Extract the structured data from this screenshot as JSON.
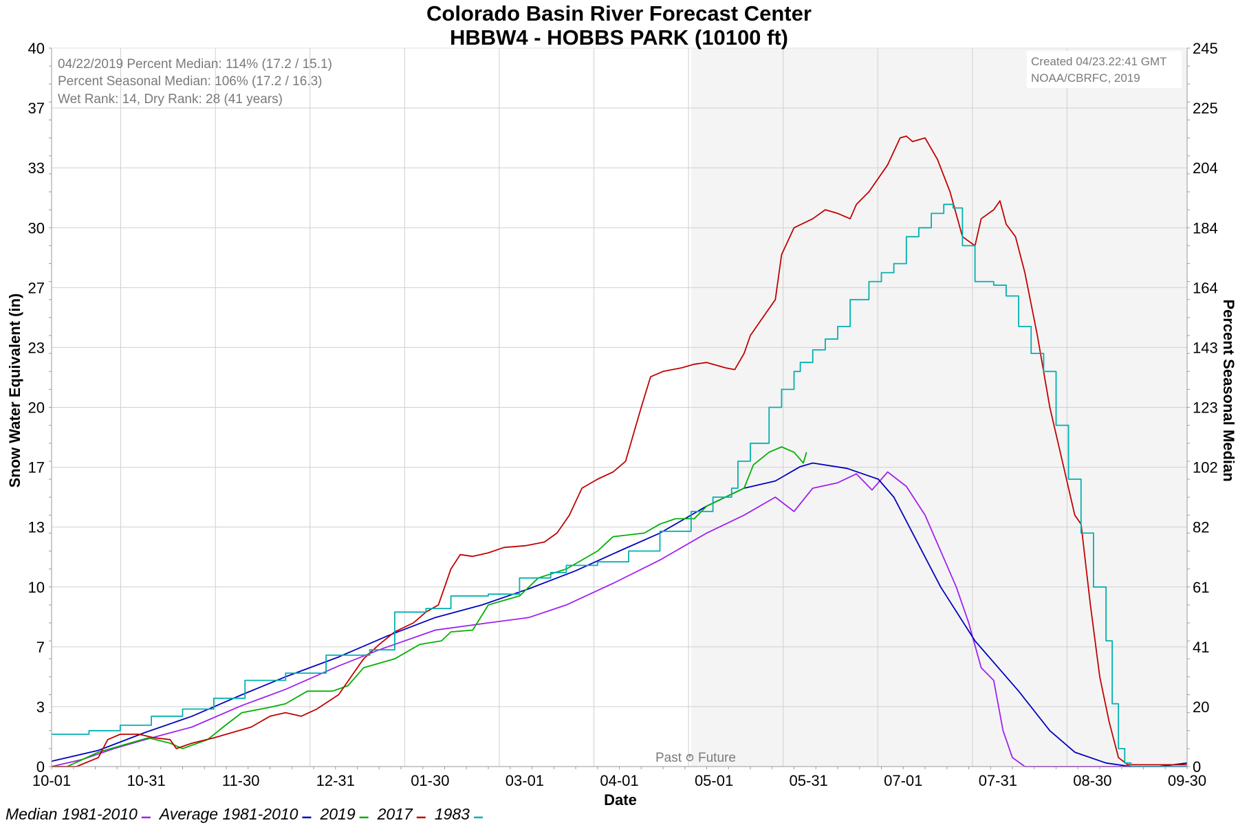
{
  "chart_data": {
    "type": "line",
    "title": "Colorado Basin River Forecast Center",
    "subtitle": "HBBW4 - HOBBS PARK (10100 ft)",
    "xlabel": "Date",
    "ylabel": "Snow Water Equivalent (in)",
    "ylabel_right": "Percent Seasonal Median",
    "x_ticks": [
      "10-01",
      "10-31",
      "11-30",
      "12-31",
      "01-30",
      "03-01",
      "04-01",
      "05-01",
      "05-31",
      "07-01",
      "07-31",
      "08-30",
      "09-30"
    ],
    "y_ticks": [
      "0",
      "3",
      "7",
      "10",
      "13",
      "17",
      "20",
      "23",
      "27",
      "30",
      "33",
      "37",
      "40"
    ],
    "y_right_ticks": [
      "0",
      "20",
      "41",
      "61",
      "82",
      "102",
      "123",
      "143",
      "164",
      "184",
      "204",
      "225",
      "245"
    ],
    "ylim": [
      0,
      40
    ],
    "ylim_right": [
      0,
      245
    ],
    "x_range_days": [
      0,
      364
    ],
    "grid": true,
    "shaded_region": {
      "start_day": 205,
      "end_day": 364,
      "color": "#f4f4f4"
    },
    "past_future_label": {
      "past": "Past",
      "future": "Future"
    },
    "info_lines": [
      "04/22/2019 Percent Median: 114% (17.2 / 15.1)",
      "Percent Seasonal Median: 106% (17.2 / 16.3)",
      "Wet Rank: 14, Dry Rank: 28  (41 years)"
    ],
    "credit_lines": [
      "Created 04/23.22:41 GMT",
      "NOAA/CBRFC, 2019"
    ],
    "legend_position": "bottom",
    "series": [
      {
        "name": "Median 1981-2010",
        "color": "#a020f0",
        "step": false,
        "points": [
          [
            0,
            0
          ],
          [
            10,
            0.4
          ],
          [
            20,
            1
          ],
          [
            30,
            1.5
          ],
          [
            45,
            2.2
          ],
          [
            61,
            3.4
          ],
          [
            75,
            4.3
          ],
          [
            92,
            5.6
          ],
          [
            105,
            6.5
          ],
          [
            123,
            7.6
          ],
          [
            140,
            8
          ],
          [
            153,
            8.3
          ],
          [
            165,
            9
          ],
          [
            180,
            10.2
          ],
          [
            195,
            11.5
          ],
          [
            210,
            13
          ],
          [
            222,
            14
          ],
          [
            232,
            15
          ],
          [
            238,
            14.2
          ],
          [
            244,
            15.5
          ],
          [
            252,
            15.8
          ],
          [
            258,
            16.3
          ],
          [
            263,
            15.4
          ],
          [
            268,
            16.4
          ],
          [
            274,
            15.6
          ],
          [
            280,
            14
          ],
          [
            285,
            12
          ],
          [
            290,
            10
          ],
          [
            294,
            8
          ],
          [
            298,
            5.5
          ],
          [
            302,
            4.8
          ],
          [
            305,
            2
          ],
          [
            308,
            0.5
          ],
          [
            312,
            0
          ],
          [
            364,
            0
          ]
        ]
      },
      {
        "name": "Average 1981-2010",
        "color": "#0000c0",
        "step": false,
        "points": [
          [
            0,
            0.3
          ],
          [
            15,
            0.9
          ],
          [
            30,
            1.9
          ],
          [
            45,
            2.8
          ],
          [
            61,
            4
          ],
          [
            75,
            5
          ],
          [
            92,
            6.1
          ],
          [
            108,
            7.3
          ],
          [
            123,
            8.3
          ],
          [
            138,
            9
          ],
          [
            153,
            9.9
          ],
          [
            168,
            10.9
          ],
          [
            182,
            12
          ],
          [
            195,
            13
          ],
          [
            210,
            14.5
          ],
          [
            222,
            15.5
          ],
          [
            232,
            15.9
          ],
          [
            240,
            16.7
          ],
          [
            244,
            16.9
          ],
          [
            255,
            16.6
          ],
          [
            265,
            16
          ],
          [
            270,
            15
          ],
          [
            276,
            13
          ],
          [
            285,
            10
          ],
          [
            296,
            7
          ],
          [
            310,
            4.2
          ],
          [
            320,
            2
          ],
          [
            328,
            0.8
          ],
          [
            338,
            0.2
          ],
          [
            346,
            0
          ],
          [
            355,
            0
          ],
          [
            364,
            0.2
          ]
        ]
      },
      {
        "name": "2019",
        "color": "#00b000",
        "step": false,
        "points": [
          [
            0,
            0
          ],
          [
            5,
            0
          ],
          [
            15,
            0.8
          ],
          [
            25,
            1.3
          ],
          [
            31,
            1.6
          ],
          [
            38,
            1.3
          ],
          [
            42,
            1
          ],
          [
            50,
            1.5
          ],
          [
            55,
            2.2
          ],
          [
            61,
            3
          ],
          [
            70,
            3.3
          ],
          [
            75,
            3.5
          ],
          [
            82,
            4.2
          ],
          [
            90,
            4.2
          ],
          [
            95,
            4.5
          ],
          [
            100,
            5.5
          ],
          [
            110,
            6
          ],
          [
            118,
            6.8
          ],
          [
            125,
            7
          ],
          [
            128,
            7.5
          ],
          [
            135,
            7.6
          ],
          [
            140,
            9
          ],
          [
            150,
            9.5
          ],
          [
            156,
            10.5
          ],
          [
            165,
            11
          ],
          [
            175,
            12
          ],
          [
            180,
            12.8
          ],
          [
            190,
            13
          ],
          [
            195,
            13.5
          ],
          [
            200,
            13.8
          ],
          [
            206,
            13.8
          ],
          [
            210,
            14.5
          ],
          [
            216,
            15
          ],
          [
            222,
            15.5
          ],
          [
            225,
            16.8
          ],
          [
            230,
            17.5
          ],
          [
            234,
            17.8
          ],
          [
            238,
            17.5
          ],
          [
            241,
            16.9
          ],
          [
            242,
            17.5
          ]
        ]
      },
      {
        "name": "2017",
        "color": "#c00000",
        "step": false,
        "points": [
          [
            0,
            0
          ],
          [
            8,
            0
          ],
          [
            15,
            0.5
          ],
          [
            18,
            1.5
          ],
          [
            22,
            1.8
          ],
          [
            28,
            1.8
          ],
          [
            33,
            1.6
          ],
          [
            38,
            1.5
          ],
          [
            40,
            1
          ],
          [
            45,
            1.3
          ],
          [
            52,
            1.6
          ],
          [
            58,
            1.9
          ],
          [
            64,
            2.2
          ],
          [
            70,
            2.8
          ],
          [
            75,
            3
          ],
          [
            80,
            2.8
          ],
          [
            85,
            3.2
          ],
          [
            92,
            4
          ],
          [
            96,
            5
          ],
          [
            100,
            6
          ],
          [
            105,
            6.8
          ],
          [
            110,
            7.5
          ],
          [
            116,
            8
          ],
          [
            120,
            8.6
          ],
          [
            124,
            9
          ],
          [
            126,
            10
          ],
          [
            128,
            11
          ],
          [
            131,
            11.8
          ],
          [
            135,
            11.7
          ],
          [
            140,
            11.9
          ],
          [
            145,
            12.2
          ],
          [
            152,
            12.3
          ],
          [
            158,
            12.5
          ],
          [
            162,
            13
          ],
          [
            166,
            14
          ],
          [
            170,
            15.5
          ],
          [
            175,
            16
          ],
          [
            180,
            16.4
          ],
          [
            184,
            17
          ],
          [
            189,
            20
          ],
          [
            192,
            21.7
          ],
          [
            196,
            22
          ],
          [
            202,
            22.2
          ],
          [
            206,
            22.4
          ],
          [
            210,
            22.5
          ],
          [
            216,
            22.2
          ],
          [
            219,
            22.1
          ],
          [
            222,
            23
          ],
          [
            224,
            24
          ],
          [
            228,
            25
          ],
          [
            232,
            26
          ],
          [
            234,
            28.5
          ],
          [
            238,
            30
          ],
          [
            244,
            30.5
          ],
          [
            248,
            31
          ],
          [
            252,
            30.8
          ],
          [
            256,
            30.5
          ],
          [
            258,
            31.3
          ],
          [
            262,
            32
          ],
          [
            268,
            33.5
          ],
          [
            272,
            35
          ],
          [
            274,
            35.1
          ],
          [
            276,
            34.8
          ],
          [
            280,
            35
          ],
          [
            284,
            33.8
          ],
          [
            288,
            32
          ],
          [
            292,
            29.5
          ],
          [
            296,
            29
          ],
          [
            298,
            30.5
          ],
          [
            302,
            31
          ],
          [
            304,
            31.5
          ],
          [
            306,
            30.2
          ],
          [
            309,
            29.5
          ],
          [
            312,
            27.5
          ],
          [
            316,
            24
          ],
          [
            320,
            20
          ],
          [
            324,
            17
          ],
          [
            328,
            14
          ],
          [
            330,
            13.5
          ],
          [
            333,
            9
          ],
          [
            336,
            5
          ],
          [
            339,
            2.5
          ],
          [
            342,
            0.5
          ],
          [
            345,
            0.1
          ],
          [
            364,
            0.1
          ]
        ]
      },
      {
        "name": "1983",
        "color": "#00b0b0",
        "step": true,
        "points": [
          [
            0,
            1.8
          ],
          [
            12,
            2
          ],
          [
            22,
            2.3
          ],
          [
            32,
            2.8
          ],
          [
            42,
            3.2
          ],
          [
            52,
            3.8
          ],
          [
            62,
            4.8
          ],
          [
            75,
            5.2
          ],
          [
            88,
            6.2
          ],
          [
            102,
            6.5
          ],
          [
            110,
            8.6
          ],
          [
            120,
            8.8
          ],
          [
            128,
            9.5
          ],
          [
            140,
            9.6
          ],
          [
            150,
            10.5
          ],
          [
            160,
            10.8
          ],
          [
            165,
            11.2
          ],
          [
            175,
            11.4
          ],
          [
            185,
            12
          ],
          [
            195,
            13.1
          ],
          [
            205,
            14.2
          ],
          [
            212,
            15
          ],
          [
            218,
            15.5
          ],
          [
            220,
            17
          ],
          [
            224,
            18
          ],
          [
            230,
            20
          ],
          [
            234,
            21
          ],
          [
            238,
            22
          ],
          [
            240,
            22.5
          ],
          [
            244,
            23.2
          ],
          [
            248,
            23.8
          ],
          [
            252,
            24.5
          ],
          [
            256,
            26
          ],
          [
            262,
            27
          ],
          [
            266,
            27.5
          ],
          [
            270,
            28
          ],
          [
            274,
            29.5
          ],
          [
            278,
            30
          ],
          [
            282,
            30.8
          ],
          [
            286,
            31.3
          ],
          [
            289,
            31.1
          ],
          [
            292,
            29
          ],
          [
            296,
            27
          ],
          [
            302,
            26.8
          ],
          [
            306,
            26.2
          ],
          [
            310,
            24.5
          ],
          [
            314,
            23
          ],
          [
            318,
            22
          ],
          [
            322,
            19
          ],
          [
            326,
            16
          ],
          [
            330,
            13
          ],
          [
            334,
            10
          ],
          [
            338,
            7
          ],
          [
            340,
            3.5
          ],
          [
            342,
            1
          ],
          [
            344,
            0.2
          ],
          [
            346,
            0
          ],
          [
            364,
            0
          ]
        ]
      }
    ]
  }
}
